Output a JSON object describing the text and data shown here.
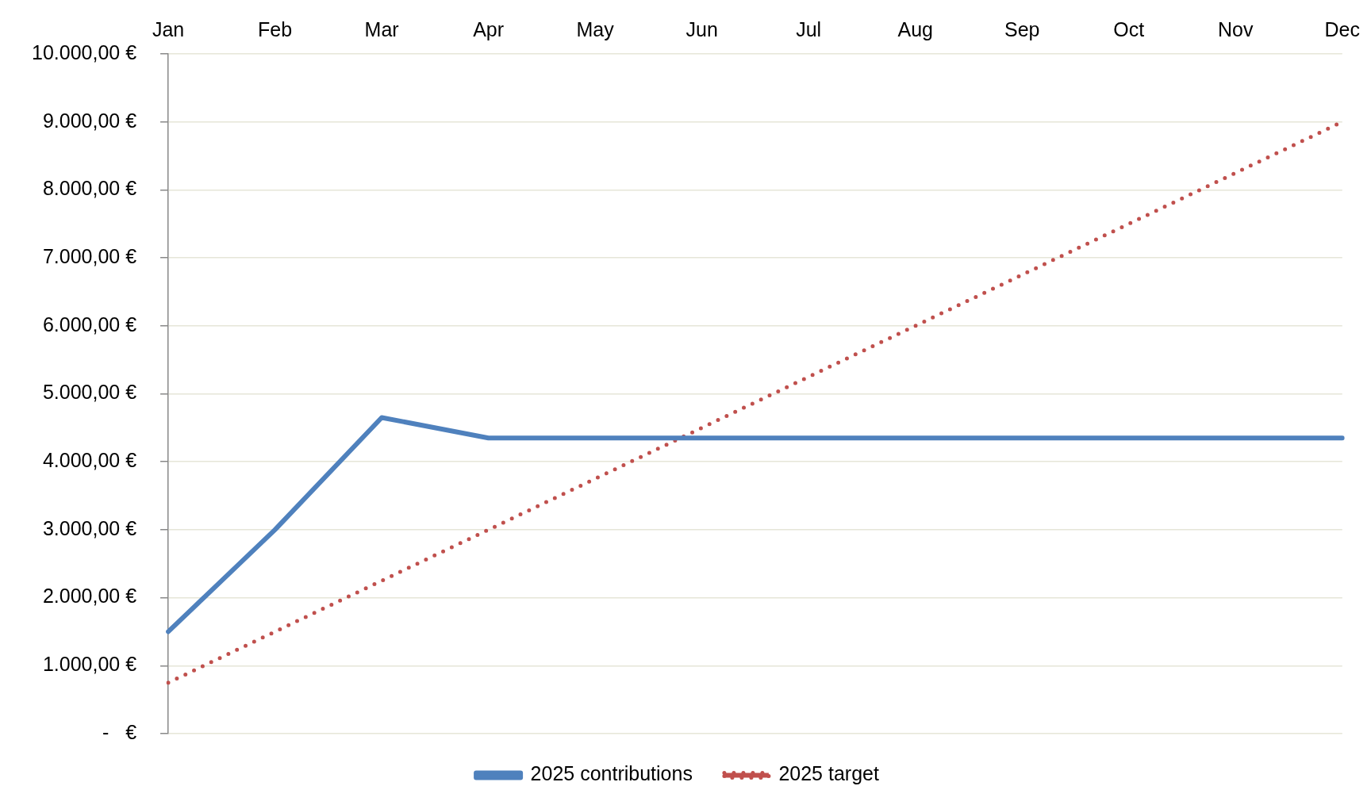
{
  "chart_data": {
    "type": "line",
    "categories": [
      "Jan",
      "Feb",
      "Mar",
      "Apr",
      "May",
      "Jun",
      "Jul",
      "Aug",
      "Sep",
      "Oct",
      "Nov",
      "Dec"
    ],
    "series": [
      {
        "name": "2025 contributions",
        "color": "#4f81bd",
        "line_style": "solid",
        "values": [
          1500,
          3000,
          4650,
          4350,
          4350,
          4350,
          4350,
          4350,
          4350,
          4350,
          4350,
          4350
        ]
      },
      {
        "name": "2025 target",
        "color": "#c0504d",
        "line_style": "dotted",
        "values": [
          750,
          1500,
          2250,
          3000,
          3750,
          4500,
          5250,
          6000,
          6750,
          7500,
          8250,
          9000
        ]
      }
    ],
    "ylim": [
      0,
      10000
    ],
    "yticks": [
      {
        "value": 0,
        "label": "-   €"
      },
      {
        "value": 1000,
        "label": "1.000,00 €"
      },
      {
        "value": 2000,
        "label": "2.000,00 €"
      },
      {
        "value": 3000,
        "label": "3.000,00 €"
      },
      {
        "value": 4000,
        "label": "4.000,00 €"
      },
      {
        "value": 5000,
        "label": "5.000,00 €"
      },
      {
        "value": 6000,
        "label": "6.000,00 €"
      },
      {
        "value": 7000,
        "label": "7.000,00 €"
      },
      {
        "value": 8000,
        "label": "8.000,00 €"
      },
      {
        "value": 9000,
        "label": "9.000,00 €"
      },
      {
        "value": 10000,
        "label": "10.000,00 €"
      }
    ],
    "grid": "y",
    "legend": "bottom",
    "marker": "none"
  }
}
